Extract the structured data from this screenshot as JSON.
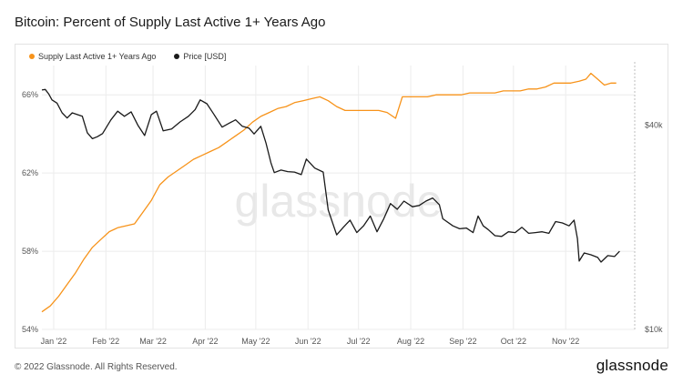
{
  "page": {
    "title": "Bitcoin: Percent of Supply Last Active 1+ Years Ago",
    "copyright": "© 2022 Glassnode. All Rights Reserved.",
    "logo_text": "glassnode",
    "watermark": "glassnode"
  },
  "colors": {
    "supply": "#f7931a",
    "price": "#1a1a1a",
    "grid": "#ececec",
    "axis_text": "#555555",
    "watermark": "#e8e8e8"
  },
  "chart_data": {
    "type": "line",
    "title": "Bitcoin: Percent of Supply Last Active 1+ Years Ago",
    "legend_position": "top-left",
    "grid": true,
    "x_range": [
      "2021-12-25",
      "2022-12-12"
    ],
    "x_ticks": [
      {
        "date": "2022-01-01",
        "label": "Jan '22"
      },
      {
        "date": "2022-02-01",
        "label": "Feb '22"
      },
      {
        "date": "2022-03-01",
        "label": "Mar '22"
      },
      {
        "date": "2022-04-01",
        "label": "Apr '22"
      },
      {
        "date": "2022-05-01",
        "label": "May '22"
      },
      {
        "date": "2022-06-01",
        "label": "Jun '22"
      },
      {
        "date": "2022-07-01",
        "label": "Jul '22"
      },
      {
        "date": "2022-08-01",
        "label": "Aug '22"
      },
      {
        "date": "2022-09-01",
        "label": "Sep '22"
      },
      {
        "date": "2022-10-01",
        "label": "Oct '22"
      },
      {
        "date": "2022-11-01",
        "label": "Nov '22"
      }
    ],
    "y_left": {
      "scale": "linear",
      "range": [
        54,
        67.5
      ],
      "ticks": [
        54,
        58,
        62,
        66
      ],
      "tick_labels": [
        "54%",
        "58%",
        "62%",
        "66%"
      ]
    },
    "y_right": {
      "scale": "log",
      "range": [
        10000,
        60000
      ],
      "ticks": [
        10000,
        40000
      ],
      "tick_labels": [
        "$10k",
        "$40k"
      ]
    },
    "series": [
      {
        "name": "Supply Last Active 1+ Years Ago",
        "axis": "left",
        "color": "#f7931a",
        "points": [
          [
            "2021-12-25",
            54.9
          ],
          [
            "2021-12-30",
            55.2
          ],
          [
            "2022-01-04",
            55.7
          ],
          [
            "2022-01-09",
            56.3
          ],
          [
            "2022-01-14",
            56.9
          ],
          [
            "2022-01-19",
            57.6
          ],
          [
            "2022-01-24",
            58.2
          ],
          [
            "2022-01-29",
            58.6
          ],
          [
            "2022-02-03",
            59.0
          ],
          [
            "2022-02-08",
            59.2
          ],
          [
            "2022-02-13",
            59.3
          ],
          [
            "2022-02-18",
            59.4
          ],
          [
            "2022-02-23",
            60.0
          ],
          [
            "2022-02-28",
            60.6
          ],
          [
            "2022-03-05",
            61.4
          ],
          [
            "2022-03-10",
            61.8
          ],
          [
            "2022-03-15",
            62.1
          ],
          [
            "2022-03-20",
            62.4
          ],
          [
            "2022-03-25",
            62.7
          ],
          [
            "2022-03-30",
            62.9
          ],
          [
            "2022-04-04",
            63.1
          ],
          [
            "2022-04-09",
            63.3
          ],
          [
            "2022-04-14",
            63.6
          ],
          [
            "2022-04-19",
            63.9
          ],
          [
            "2022-04-24",
            64.2
          ],
          [
            "2022-04-29",
            64.6
          ],
          [
            "2022-05-04",
            64.9
          ],
          [
            "2022-05-09",
            65.1
          ],
          [
            "2022-05-14",
            65.3
          ],
          [
            "2022-05-19",
            65.4
          ],
          [
            "2022-05-24",
            65.6
          ],
          [
            "2022-05-29",
            65.7
          ],
          [
            "2022-06-03",
            65.8
          ],
          [
            "2022-06-08",
            65.9
          ],
          [
            "2022-06-13",
            65.7
          ],
          [
            "2022-06-18",
            65.4
          ],
          [
            "2022-06-23",
            65.2
          ],
          [
            "2022-06-28",
            65.2
          ],
          [
            "2022-07-03",
            65.2
          ],
          [
            "2022-07-08",
            65.2
          ],
          [
            "2022-07-13",
            65.2
          ],
          [
            "2022-07-18",
            65.1
          ],
          [
            "2022-07-23",
            64.8
          ],
          [
            "2022-07-27",
            65.9
          ],
          [
            "2022-08-01",
            65.9
          ],
          [
            "2022-08-06",
            65.9
          ],
          [
            "2022-08-11",
            65.9
          ],
          [
            "2022-08-16",
            66.0
          ],
          [
            "2022-08-21",
            66.0
          ],
          [
            "2022-08-26",
            66.0
          ],
          [
            "2022-08-31",
            66.0
          ],
          [
            "2022-09-05",
            66.1
          ],
          [
            "2022-09-10",
            66.1
          ],
          [
            "2022-09-15",
            66.1
          ],
          [
            "2022-09-20",
            66.1
          ],
          [
            "2022-09-25",
            66.2
          ],
          [
            "2022-09-30",
            66.2
          ],
          [
            "2022-10-05",
            66.2
          ],
          [
            "2022-10-10",
            66.3
          ],
          [
            "2022-10-15",
            66.3
          ],
          [
            "2022-10-20",
            66.4
          ],
          [
            "2022-10-25",
            66.6
          ],
          [
            "2022-10-30",
            66.6
          ],
          [
            "2022-11-04",
            66.6
          ],
          [
            "2022-11-09",
            66.7
          ],
          [
            "2022-11-13",
            66.8
          ],
          [
            "2022-11-16",
            67.1
          ],
          [
            "2022-11-20",
            66.8
          ],
          [
            "2022-11-24",
            66.5
          ],
          [
            "2022-11-28",
            66.6
          ],
          [
            "2022-12-01",
            66.6
          ]
        ]
      },
      {
        "name": "Price [USD]",
        "axis": "right",
        "color": "#1a1a1a",
        "points": [
          [
            "2021-12-25",
            50800
          ],
          [
            "2021-12-27",
            51000
          ],
          [
            "2021-12-29",
            49500
          ],
          [
            "2021-12-31",
            47500
          ],
          [
            "2022-01-03",
            46500
          ],
          [
            "2022-01-06",
            43500
          ],
          [
            "2022-01-09",
            42000
          ],
          [
            "2022-01-12",
            43500
          ],
          [
            "2022-01-15",
            43000
          ],
          [
            "2022-01-18",
            42500
          ],
          [
            "2022-01-21",
            38000
          ],
          [
            "2022-01-24",
            36500
          ],
          [
            "2022-01-27",
            37000
          ],
          [
            "2022-01-30",
            37800
          ],
          [
            "2022-02-04",
            41500
          ],
          [
            "2022-02-08",
            44000
          ],
          [
            "2022-02-12",
            42500
          ],
          [
            "2022-02-16",
            43800
          ],
          [
            "2022-02-20",
            40000
          ],
          [
            "2022-02-24",
            37300
          ],
          [
            "2022-02-28",
            43000
          ],
          [
            "2022-03-03",
            44000
          ],
          [
            "2022-03-07",
            38500
          ],
          [
            "2022-03-12",
            39000
          ],
          [
            "2022-03-17",
            40900
          ],
          [
            "2022-03-22",
            42500
          ],
          [
            "2022-03-26",
            44500
          ],
          [
            "2022-03-29",
            47500
          ],
          [
            "2022-04-02",
            46300
          ],
          [
            "2022-04-06",
            43200
          ],
          [
            "2022-04-11",
            39500
          ],
          [
            "2022-04-15",
            40500
          ],
          [
            "2022-04-19",
            41500
          ],
          [
            "2022-04-23",
            39700
          ],
          [
            "2022-04-27",
            39200
          ],
          [
            "2022-04-30",
            37700
          ],
          [
            "2022-05-04",
            39700
          ],
          [
            "2022-05-07",
            35500
          ],
          [
            "2022-05-10",
            31000
          ],
          [
            "2022-05-12",
            29000
          ],
          [
            "2022-05-16",
            29500
          ],
          [
            "2022-05-20",
            29200
          ],
          [
            "2022-05-24",
            29100
          ],
          [
            "2022-05-28",
            28600
          ],
          [
            "2022-05-31",
            31800
          ],
          [
            "2022-06-05",
            29900
          ],
          [
            "2022-06-10",
            29100
          ],
          [
            "2022-06-13",
            22500
          ],
          [
            "2022-06-18",
            19000
          ],
          [
            "2022-06-22",
            20000
          ],
          [
            "2022-06-26",
            21000
          ],
          [
            "2022-06-30",
            19300
          ],
          [
            "2022-07-04",
            20200
          ],
          [
            "2022-07-08",
            21600
          ],
          [
            "2022-07-12",
            19400
          ],
          [
            "2022-07-16",
            21200
          ],
          [
            "2022-07-20",
            23500
          ],
          [
            "2022-07-24",
            22600
          ],
          [
            "2022-07-28",
            23900
          ],
          [
            "2022-08-02",
            23000
          ],
          [
            "2022-08-06",
            23200
          ],
          [
            "2022-08-10",
            23900
          ],
          [
            "2022-08-14",
            24400
          ],
          [
            "2022-08-18",
            23300
          ],
          [
            "2022-08-20",
            21200
          ],
          [
            "2022-08-26",
            20200
          ],
          [
            "2022-08-30",
            19800
          ],
          [
            "2022-09-03",
            19900
          ],
          [
            "2022-09-07",
            19300
          ],
          [
            "2022-09-10",
            21600
          ],
          [
            "2022-09-13",
            20200
          ],
          [
            "2022-09-16",
            19700
          ],
          [
            "2022-09-20",
            18900
          ],
          [
            "2022-09-24",
            18800
          ],
          [
            "2022-09-28",
            19400
          ],
          [
            "2022-10-02",
            19300
          ],
          [
            "2022-10-06",
            20000
          ],
          [
            "2022-10-10",
            19200
          ],
          [
            "2022-10-14",
            19300
          ],
          [
            "2022-10-18",
            19400
          ],
          [
            "2022-10-22",
            19200
          ],
          [
            "2022-10-26",
            20800
          ],
          [
            "2022-10-30",
            20600
          ],
          [
            "2022-11-03",
            20200
          ],
          [
            "2022-11-06",
            21000
          ],
          [
            "2022-11-08",
            18500
          ],
          [
            "2022-11-09",
            15900
          ],
          [
            "2022-11-12",
            16800
          ],
          [
            "2022-11-16",
            16600
          ],
          [
            "2022-11-20",
            16300
          ],
          [
            "2022-11-22",
            15800
          ],
          [
            "2022-11-26",
            16500
          ],
          [
            "2022-11-30",
            16400
          ],
          [
            "2022-12-03",
            17000
          ]
        ]
      }
    ]
  }
}
